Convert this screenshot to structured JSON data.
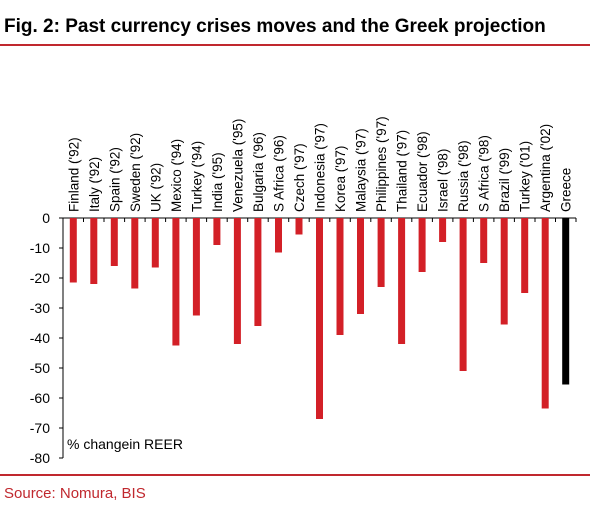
{
  "header": {
    "title": "Fig. 2: Past currency crises moves and the Greek projection"
  },
  "footer": {
    "source": "Source: Nomura, BIS"
  },
  "colors": {
    "accent": "#c0282e",
    "bar_past": "#d32027",
    "bar_projection": "#000000"
  },
  "chart_data": {
    "type": "bar",
    "title": "Fig. 2: Past currency crises moves and the Greek projection",
    "ylabel": "",
    "annotation": "% changein REER",
    "ylim": [
      -80,
      0
    ],
    "yticks": [
      0,
      -10,
      -20,
      -30,
      -40,
      -50,
      -60,
      -70,
      -80
    ],
    "grid": false,
    "categories": [
      "Finland ('92)",
      "Italy ('92)",
      "Spain ('92)",
      "Sweden ('92)",
      "UK ('92)",
      "Mexico ('94)",
      "Turkey ('94)",
      "India ('95)",
      "Venezuela ('95)",
      "Bulgaria ('96)",
      "S Africa ('96)",
      "Czech ('97)",
      "Indonesia ('97)",
      "Korea ('97)",
      "Malaysia ('97)",
      "Philippines ('97)",
      "Thailand ('97)",
      "Ecuador ('98)",
      "Israel ('98)",
      "Russia ('98)",
      "S Africa ('98)",
      "Brazil ('99)",
      "Turkey ('01)",
      "Argentina ('02)",
      "Greece"
    ],
    "values": [
      -21.5,
      -22,
      -16,
      -23.5,
      -16.5,
      -42.5,
      -32.5,
      -9,
      -42,
      -36,
      -11.5,
      -5.5,
      -67,
      -39,
      -32,
      -23,
      -42,
      -18,
      -8,
      -51,
      -15,
      -35.5,
      -25,
      -63.5,
      -55.5
    ],
    "highlight": "Greece"
  }
}
